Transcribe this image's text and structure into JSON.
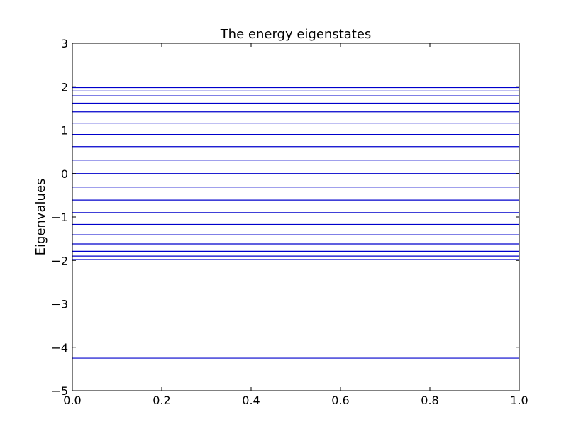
{
  "chart_data": {
    "type": "line",
    "title": "The energy eigenstates",
    "xlabel": "",
    "ylabel": "Eigenvalues",
    "xlim": [
      0.0,
      1.0
    ],
    "ylim": [
      -5,
      3
    ],
    "x_ticks": [
      "0.0",
      "0.2",
      "0.4",
      "0.6",
      "0.8",
      "1.0"
    ],
    "y_ticks": [
      "−5",
      "−4",
      "−3",
      "−2",
      "−1",
      "0",
      "1",
      "2",
      "3"
    ],
    "series_color": "#0000cc",
    "eigenvalues": [
      -4.25,
      -1.98,
      -1.9,
      -1.79,
      -1.62,
      -1.41,
      -1.17,
      -0.9,
      -0.61,
      -0.31,
      0.0,
      0.31,
      0.62,
      0.9,
      1.16,
      1.42,
      1.62,
      1.79,
      1.9,
      1.98
    ],
    "grid": false,
    "legend": "none"
  }
}
